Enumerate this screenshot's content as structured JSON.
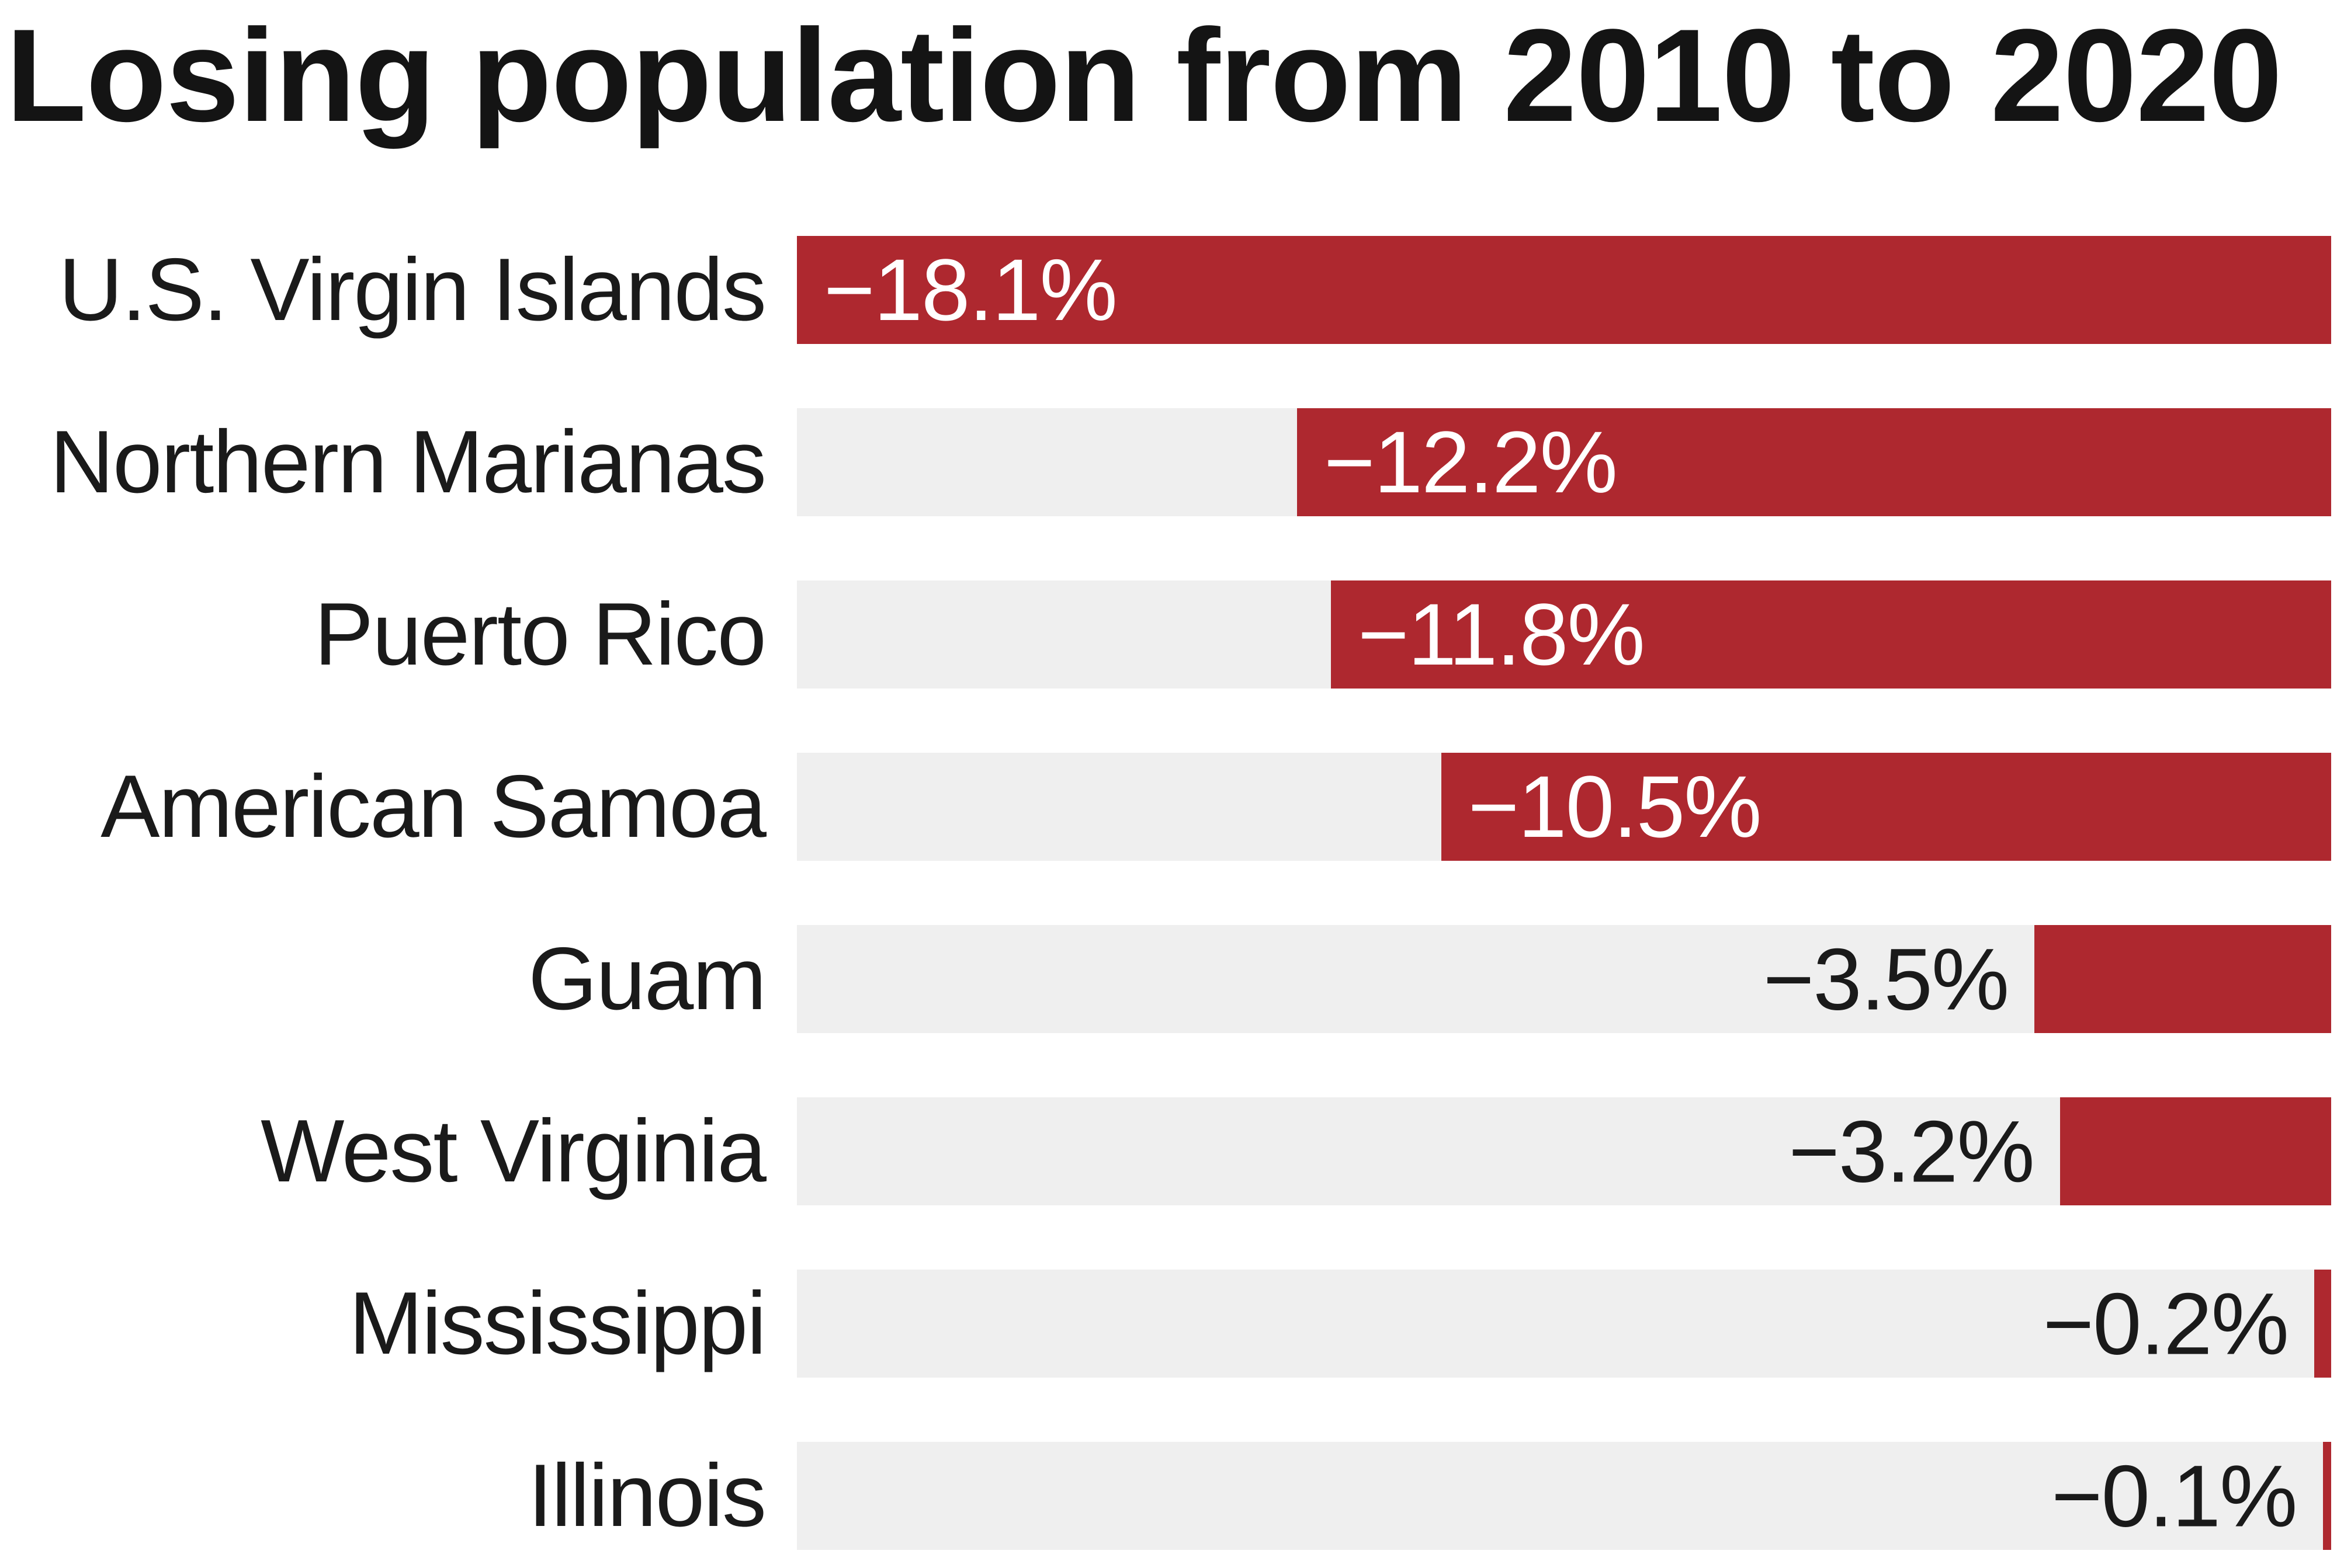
{
  "title": "Losing population from 2010 to 2020",
  "colors": {
    "bar_red": "#ae282f",
    "track_grey": "#efefef",
    "text_black": "#1a1a1a",
    "value_white": "#ffffff",
    "background": "#ffffff"
  },
  "chart_data": {
    "type": "bar",
    "orientation": "horizontal",
    "bars_right_anchored": true,
    "title": "Losing population from 2010 to 2020",
    "categories": [
      "U.S. Virgin Islands",
      "Northern Marianas",
      "Puerto Rico",
      "American Samoa",
      "Guam",
      "West Virginia",
      "Mississippi",
      "Illinois"
    ],
    "values": [
      -18.1,
      -12.2,
      -11.8,
      -10.5,
      -3.5,
      -3.2,
      -0.2,
      -0.1
    ],
    "value_labels": [
      "−18.1%",
      "−12.2%",
      "−11.8%",
      "−10.5%",
      "−3.5%",
      "−3.2%",
      "−0.2%",
      "−0.1%"
    ],
    "unit": "%",
    "axis_max_abs": 18.1,
    "xlabel": "",
    "ylabel": "",
    "grid": false,
    "legend": "none",
    "value_label_inside_threshold_pct": 30
  }
}
